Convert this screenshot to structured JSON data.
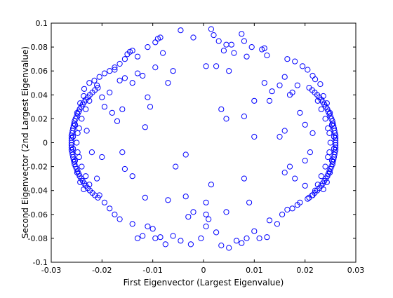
{
  "chart_data": {
    "type": "scatter",
    "title": "",
    "xlabel": "First Eigenvector (Largest Eigenvalue)",
    "ylabel": "Second Eigenvector (2nd Largest Eigenvalue)",
    "xlim": [
      -0.03,
      0.03
    ],
    "ylim": [
      -0.1,
      0.1
    ],
    "xticks": [
      -0.03,
      -0.02,
      -0.01,
      0,
      0.01,
      0.02,
      0.03
    ],
    "xtick_labels": [
      "-0.03",
      "-0.02",
      "-0.01",
      "0",
      "0.01",
      "0.02",
      "0.03"
    ],
    "yticks": [
      -0.1,
      -0.08,
      -0.06,
      -0.04,
      -0.02,
      0,
      0.02,
      0.04,
      0.06,
      0.08,
      0.1
    ],
    "ytick_labels": [
      "-0.1",
      "-0.08",
      "-0.06",
      "-0.04",
      "-0.02",
      "0",
      "0.02",
      "0.04",
      "0.06",
      "0.08",
      "0.1"
    ],
    "grid": false,
    "legend": "none",
    "marker": "circle-open",
    "color": "#0000ff",
    "series": [
      {
        "points": [
          [
            -0.026,
            0.0
          ],
          [
            -0.026,
            0.002
          ],
          [
            -0.026,
            -0.002
          ],
          [
            -0.026,
            0.004
          ],
          [
            -0.026,
            -0.004
          ],
          [
            -0.026,
            0.006
          ],
          [
            -0.026,
            -0.006
          ],
          [
            -0.0259,
            0.008
          ],
          [
            -0.0259,
            -0.008
          ],
          [
            -0.0258,
            0.01
          ],
          [
            -0.0258,
            -0.01
          ],
          [
            -0.0257,
            0.012
          ],
          [
            -0.0257,
            -0.012
          ],
          [
            -0.0256,
            0.014
          ],
          [
            -0.0256,
            -0.014
          ],
          [
            -0.0255,
            0.016
          ],
          [
            -0.0255,
            -0.016
          ],
          [
            -0.0254,
            0.018
          ],
          [
            -0.0254,
            -0.018
          ],
          [
            -0.0252,
            0.02
          ],
          [
            -0.0252,
            -0.02
          ],
          [
            -0.025,
            0.022
          ],
          [
            -0.025,
            -0.022
          ],
          [
            -0.0248,
            0.024
          ],
          [
            -0.0248,
            -0.024
          ],
          [
            -0.0246,
            0.026
          ],
          [
            -0.0246,
            -0.026
          ],
          [
            -0.0244,
            0.028
          ],
          [
            -0.0244,
            -0.028
          ],
          [
            -0.0241,
            0.03
          ],
          [
            -0.0241,
            -0.03
          ],
          [
            -0.0238,
            0.032
          ],
          [
            -0.0238,
            -0.032
          ],
          [
            -0.0235,
            0.034
          ],
          [
            -0.0235,
            -0.034
          ],
          [
            -0.0232,
            0.036
          ],
          [
            -0.0232,
            -0.036
          ],
          [
            -0.0228,
            0.038
          ],
          [
            -0.0228,
            -0.038
          ],
          [
            -0.0224,
            0.04
          ],
          [
            -0.0224,
            -0.04
          ],
          [
            -0.0219,
            0.042
          ],
          [
            -0.0219,
            -0.042
          ],
          [
            -0.0214,
            0.044
          ],
          [
            -0.0214,
            -0.044
          ],
          [
            -0.0208,
            0.046
          ],
          [
            -0.0208,
            -0.046
          ],
          [
            -0.0257,
            0.005
          ],
          [
            -0.0257,
            -0.005
          ],
          [
            -0.0253,
            0.015
          ],
          [
            -0.0253,
            -0.015
          ],
          [
            -0.0249,
            0.025
          ],
          [
            -0.0249,
            -0.025
          ],
          [
            -0.0243,
            0.033
          ],
          [
            -0.0243,
            -0.033
          ],
          [
            -0.0236,
            0.039
          ],
          [
            -0.0236,
            -0.039
          ],
          [
            -0.0245,
            0.012
          ],
          [
            -0.0245,
            -0.012
          ],
          [
            -0.024,
            0.02
          ],
          [
            -0.024,
            -0.02
          ],
          [
            -0.0232,
            0.028
          ],
          [
            -0.0232,
            -0.028
          ],
          [
            -0.0225,
            0.035
          ],
          [
            -0.0225,
            -0.035
          ],
          [
            -0.025,
            0.0
          ],
          [
            -0.0248,
            0.008
          ],
          [
            -0.0248,
            -0.008
          ],
          [
            0.026,
            0.0
          ],
          [
            0.026,
            0.002
          ],
          [
            0.026,
            -0.002
          ],
          [
            0.026,
            0.004
          ],
          [
            0.026,
            -0.004
          ],
          [
            0.026,
            0.006
          ],
          [
            0.026,
            -0.006
          ],
          [
            0.0259,
            0.008
          ],
          [
            0.0259,
            -0.008
          ],
          [
            0.0258,
            0.01
          ],
          [
            0.0258,
            -0.01
          ],
          [
            0.0257,
            0.012
          ],
          [
            0.0257,
            -0.012
          ],
          [
            0.0256,
            0.014
          ],
          [
            0.0256,
            -0.014
          ],
          [
            0.0255,
            0.016
          ],
          [
            0.0255,
            -0.016
          ],
          [
            0.0254,
            0.018
          ],
          [
            0.0254,
            -0.018
          ],
          [
            0.0252,
            0.02
          ],
          [
            0.0252,
            -0.02
          ],
          [
            0.025,
            0.022
          ],
          [
            0.025,
            -0.022
          ],
          [
            0.0248,
            0.024
          ],
          [
            0.0248,
            -0.024
          ],
          [
            0.0246,
            0.026
          ],
          [
            0.0246,
            -0.026
          ],
          [
            0.0244,
            0.028
          ],
          [
            0.0244,
            -0.028
          ],
          [
            0.0241,
            0.03
          ],
          [
            0.0241,
            -0.03
          ],
          [
            0.0238,
            0.032
          ],
          [
            0.0238,
            -0.032
          ],
          [
            0.0235,
            0.034
          ],
          [
            0.0235,
            -0.034
          ],
          [
            0.0232,
            0.036
          ],
          [
            0.0232,
            -0.036
          ],
          [
            0.0228,
            0.038
          ],
          [
            0.0228,
            -0.038
          ],
          [
            0.0224,
            0.04
          ],
          [
            0.0224,
            -0.04
          ],
          [
            0.0219,
            0.042
          ],
          [
            0.0219,
            -0.042
          ],
          [
            0.0214,
            0.044
          ],
          [
            0.0214,
            -0.044
          ],
          [
            0.0208,
            0.046
          ],
          [
            0.0208,
            -0.046
          ],
          [
            0.0257,
            0.005
          ],
          [
            0.0257,
            -0.005
          ],
          [
            0.0253,
            0.015
          ],
          [
            0.0253,
            -0.015
          ],
          [
            0.0249,
            0.025
          ],
          [
            0.0249,
            -0.025
          ],
          [
            0.0243,
            0.033
          ],
          [
            0.0243,
            -0.033
          ],
          [
            0.0236,
            0.039
          ],
          [
            0.0236,
            -0.039
          ],
          [
            0.0245,
            0.012
          ],
          [
            0.0245,
            -0.012
          ],
          [
            0.024,
            0.02
          ],
          [
            0.024,
            -0.02
          ],
          [
            0.0232,
            0.028
          ],
          [
            0.0232,
            -0.028
          ],
          [
            0.0225,
            0.035
          ],
          [
            0.0225,
            -0.035
          ],
          [
            0.025,
            0.0
          ],
          [
            0.0248,
            0.008
          ],
          [
            0.0248,
            -0.008
          ],
          [
            -0.0235,
            0.045
          ],
          [
            -0.0225,
            0.05
          ],
          [
            -0.0215,
            0.052
          ],
          [
            -0.0205,
            0.055
          ],
          [
            -0.0195,
            0.058
          ],
          [
            -0.0185,
            0.06
          ],
          [
            -0.0175,
            0.063
          ],
          [
            -0.0165,
            0.066
          ],
          [
            -0.0155,
            0.07
          ],
          [
            -0.015,
            0.074
          ],
          [
            -0.0145,
            0.076
          ],
          [
            -0.014,
            0.077
          ],
          [
            -0.013,
            0.072
          ],
          [
            -0.011,
            0.08
          ],
          [
            -0.0095,
            0.084
          ],
          [
            -0.009,
            0.087
          ],
          [
            -0.0085,
            0.088
          ],
          [
            -0.008,
            0.075
          ],
          [
            -0.0045,
            0.094
          ],
          [
            -0.002,
            0.088
          ],
          [
            0.0015,
            0.095
          ],
          [
            0.002,
            0.09
          ],
          [
            0.003,
            0.085
          ],
          [
            0.0045,
            0.082
          ],
          [
            0.004,
            0.077
          ],
          [
            0.0055,
            0.082
          ],
          [
            0.006,
            0.075
          ],
          [
            0.0075,
            0.091
          ],
          [
            0.008,
            0.085
          ],
          [
            0.0085,
            0.072
          ],
          [
            0.0095,
            0.08
          ],
          [
            0.0115,
            0.078
          ],
          [
            0.012,
            0.079
          ],
          [
            0.0125,
            0.073
          ],
          [
            0.0165,
            0.07
          ],
          [
            0.018,
            0.068
          ],
          [
            0.0195,
            0.064
          ],
          [
            0.0205,
            0.061
          ],
          [
            0.0215,
            0.056
          ],
          [
            0.022,
            0.053
          ],
          [
            0.023,
            0.049
          ],
          [
            -0.021,
            0.048
          ],
          [
            -0.0165,
            0.052
          ],
          [
            -0.0175,
            0.061
          ],
          [
            -0.0155,
            0.054
          ],
          [
            -0.014,
            0.05
          ],
          [
            -0.013,
            0.058
          ],
          [
            -0.012,
            0.056
          ],
          [
            -0.006,
            0.06
          ],
          [
            -0.0185,
            0.042
          ],
          [
            -0.02,
            0.038
          ],
          [
            -0.0195,
            0.03
          ],
          [
            -0.018,
            0.025
          ],
          [
            -0.017,
            0.018
          ],
          [
            -0.016,
            0.028
          ],
          [
            -0.011,
            0.038
          ],
          [
            -0.0105,
            0.03
          ],
          [
            -0.0115,
            0.013
          ],
          [
            -0.023,
            0.01
          ],
          [
            -0.022,
            -0.008
          ],
          [
            -0.016,
            -0.008
          ],
          [
            -0.0155,
            -0.022
          ],
          [
            -0.014,
            -0.028
          ],
          [
            -0.0115,
            -0.046
          ],
          [
            -0.007,
            -0.048
          ],
          [
            -0.0055,
            -0.02
          ],
          [
            -0.02,
            -0.012
          ],
          [
            -0.021,
            -0.03
          ],
          [
            -0.0205,
            -0.044
          ],
          [
            -0.0195,
            -0.05
          ],
          [
            -0.0185,
            -0.055
          ],
          [
            -0.0175,
            -0.06
          ],
          [
            -0.0165,
            -0.064
          ],
          [
            -0.014,
            -0.068
          ],
          [
            -0.013,
            -0.08
          ],
          [
            -0.012,
            -0.078
          ],
          [
            -0.011,
            -0.07
          ],
          [
            -0.01,
            -0.072
          ],
          [
            -0.0095,
            -0.08
          ],
          [
            -0.0085,
            -0.079
          ],
          [
            -0.0075,
            -0.085
          ],
          [
            -0.006,
            -0.078
          ],
          [
            -0.0045,
            -0.082
          ],
          [
            -0.0025,
            -0.085
          ],
          [
            -0.0005,
            -0.08
          ],
          [
            0.0005,
            -0.07
          ],
          [
            0.001,
            -0.064
          ],
          [
            0.0025,
            -0.075
          ],
          [
            0.0035,
            -0.086
          ],
          [
            0.005,
            -0.088
          ],
          [
            0.0065,
            -0.082
          ],
          [
            0.0075,
            -0.084
          ],
          [
            0.0085,
            -0.08
          ],
          [
            0.01,
            -0.074
          ],
          [
            0.011,
            -0.08
          ],
          [
            0.0125,
            -0.079
          ],
          [
            0.013,
            -0.065
          ],
          [
            0.0145,
            -0.068
          ],
          [
            0.0155,
            -0.06
          ],
          [
            0.0165,
            -0.056
          ],
          [
            0.0175,
            -0.055
          ],
          [
            0.0185,
            -0.052
          ],
          [
            0.019,
            -0.05
          ],
          [
            0.0205,
            -0.047
          ],
          [
            0.0215,
            -0.044
          ],
          [
            0.022,
            -0.04
          ],
          [
            0.02,
            -0.036
          ],
          [
            0.018,
            -0.03
          ],
          [
            0.016,
            -0.025
          ],
          [
            0.017,
            -0.02
          ],
          [
            0.02,
            -0.015
          ],
          [
            0.021,
            -0.008
          ],
          [
            0.0215,
            0.008
          ],
          [
            0.02,
            0.015
          ],
          [
            0.016,
            0.01
          ],
          [
            0.015,
            0.005
          ],
          [
            0.01,
            0.005
          ],
          [
            0.008,
            -0.03
          ],
          [
            0.009,
            -0.05
          ],
          [
            0.0045,
            -0.058
          ],
          [
            -0.0035,
            -0.045
          ],
          [
            -0.002,
            -0.058
          ],
          [
            -0.003,
            -0.062
          ],
          [
            0.0005,
            -0.06
          ],
          [
            0.019,
            0.025
          ],
          [
            0.0175,
            0.042
          ],
          [
            0.0185,
            0.048
          ],
          [
            0.017,
            0.04
          ],
          [
            0.013,
            0.035
          ],
          [
            0.0135,
            0.043
          ],
          [
            0.015,
            0.048
          ],
          [
            0.016,
            0.055
          ],
          [
            0.012,
            0.05
          ],
          [
            0.01,
            0.035
          ],
          [
            0.008,
            0.022
          ],
          [
            0.0045,
            0.02
          ],
          [
            0.0035,
            0.028
          ],
          [
            0.0025,
            0.064
          ],
          [
            0.0005,
            0.064
          ],
          [
            -0.0095,
            0.063
          ],
          [
            -0.0035,
            -0.01
          ],
          [
            -0.007,
            0.05
          ],
          [
            0.0005,
            -0.05
          ],
          [
            0.0015,
            -0.035
          ],
          [
            0.005,
            0.06
          ]
        ]
      }
    ]
  }
}
